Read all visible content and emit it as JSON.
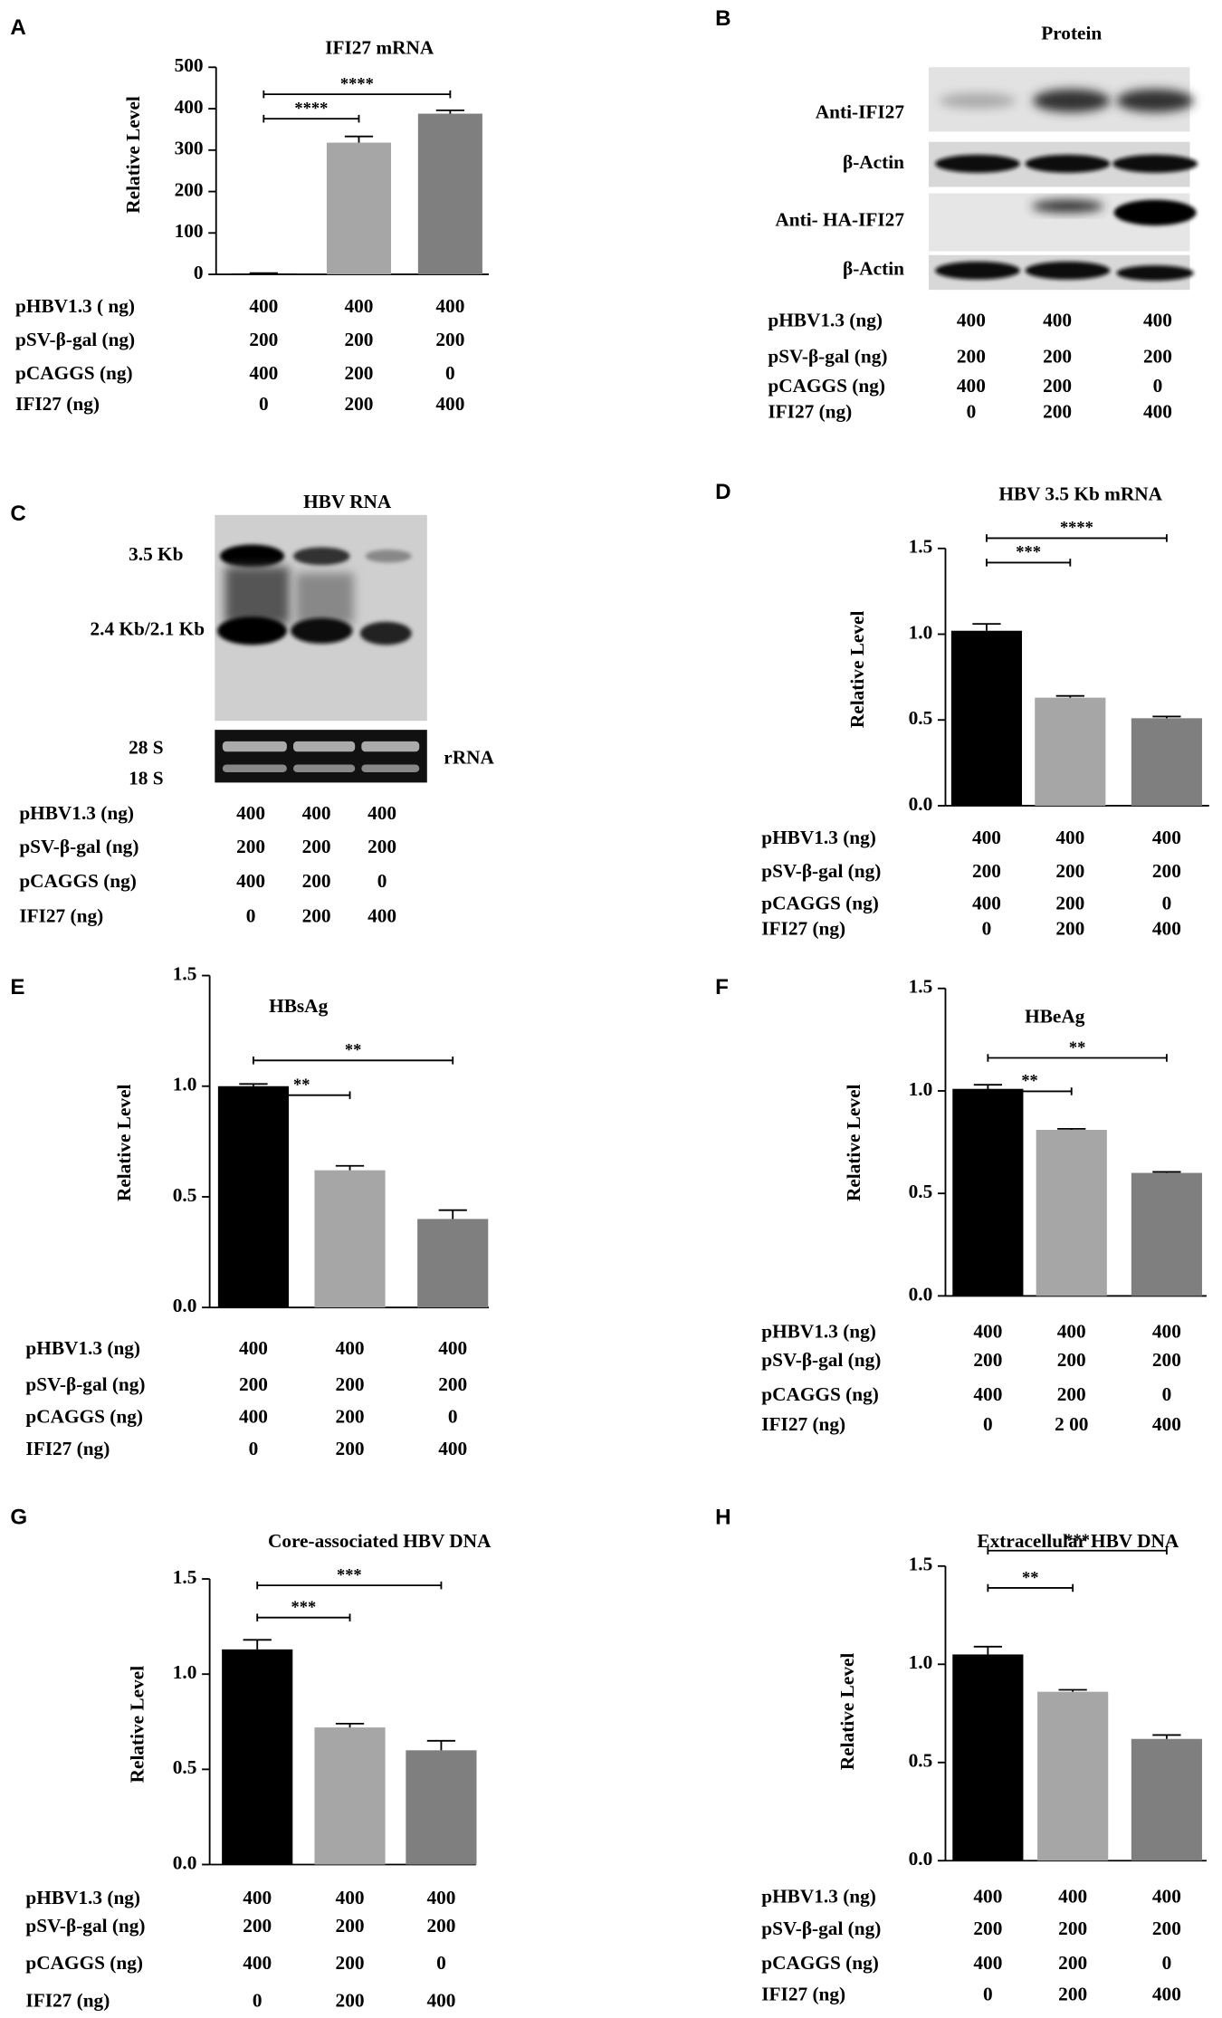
{
  "chart_data": [
    {
      "type": "bar",
      "panel": "A",
      "title": "IFI27 mRNA",
      "ylabel": "Relative Level",
      "values": [
        2,
        318,
        388
      ],
      "errors": [
        1,
        15,
        8
      ],
      "colors": [
        "#000000",
        "#a6a6a6",
        "#7f7f7f"
      ],
      "ylim": [
        0,
        500
      ],
      "yticks": [
        0,
        100,
        200,
        300,
        400,
        500
      ],
      "annotations": [
        "****",
        "****"
      ],
      "conditions": {
        "labels": [
          "pHBV1.3 ( ng)",
          "pSV-β-gal (ng)",
          "pCAGGS (ng)",
          "IFI27  (ng)"
        ],
        "values": [
          [
            400,
            400,
            400
          ],
          [
            200,
            200,
            200
          ],
          [
            400,
            200,
            0
          ],
          [
            0,
            200,
            400
          ]
        ]
      }
    },
    {
      "type": "bar",
      "panel": "D",
      "title": "HBV 3.5 Kb mRNA",
      "ylabel": "Relative Level",
      "values": [
        1.02,
        0.63,
        0.51
      ],
      "errors": [
        0.04,
        0.01,
        0.01
      ],
      "colors": [
        "#000000",
        "#a6a6a6",
        "#7f7f7f"
      ],
      "ylim": [
        0,
        1.5
      ],
      "yticks": [
        {
          "value": 0,
          "label": "0.0"
        },
        0.5,
        {
          "value": 1,
          "label": "1.0"
        },
        1.5
      ],
      "annotations": [
        "***",
        "****"
      ],
      "conditions": {
        "labels": [
          "pHBV1.3 (ng)",
          "pSV-β-gal (ng)",
          "pCAGGS (ng)",
          "IFI27  (ng)"
        ],
        "values": [
          [
            400,
            400,
            400
          ],
          [
            200,
            200,
            200
          ],
          [
            400,
            200,
            0
          ],
          [
            0,
            200,
            400
          ]
        ]
      }
    },
    {
      "type": "bar",
      "panel": "E",
      "title": "HBsAg",
      "ylabel": "Relative  Level",
      "values": [
        1.0,
        0.62,
        0.4
      ],
      "errors": [
        0.01,
        0.02,
        0.04
      ],
      "colors": [
        "#000000",
        "#a6a6a6",
        "#7f7f7f"
      ],
      "ylim": [
        0,
        1.5
      ],
      "yticks": [
        {
          "value": 0,
          "label": "0.0"
        },
        0.5,
        {
          "value": 1,
          "label": "1.0"
        },
        1.5
      ],
      "annotations": [
        "**",
        "**"
      ],
      "conditions": {
        "labels": [
          "pHBV1.3 (ng)",
          "pSV-β-gal (ng)",
          "pCAGGS (ng)",
          "IFI27   (ng)"
        ],
        "values": [
          [
            400,
            400,
            400
          ],
          [
            200,
            200,
            200
          ],
          [
            400,
            200,
            0
          ],
          [
            0,
            200,
            400
          ]
        ]
      }
    },
    {
      "type": "bar",
      "panel": "F",
      "title": "HBeAg",
      "ylabel": "Relative  Level",
      "values": [
        1.01,
        0.81,
        0.6
      ],
      "errors": [
        0.02,
        0.005,
        0.005
      ],
      "colors": [
        "#000000",
        "#a6a6a6",
        "#7f7f7f"
      ],
      "ylim": [
        0,
        1.5
      ],
      "yticks": [
        {
          "value": 0,
          "label": "0.0"
        },
        0.5,
        {
          "value": 1,
          "label": "1.0"
        },
        1.5
      ],
      "annotations": [
        "**",
        "**"
      ],
      "conditions": {
        "labels": [
          "pHBV1.3 (ng)",
          "pSV-β-gal (ng)",
          "pCAGGS (ng)",
          "IFI27 (ng)"
        ],
        "values": [
          [
            400,
            400,
            400
          ],
          [
            200,
            200,
            200
          ],
          [
            400,
            200,
            0
          ],
          [
            0,
            "2 00",
            400
          ]
        ]
      }
    },
    {
      "type": "bar",
      "panel": "G",
      "title": "Core-associated HBV DNA",
      "ylabel": "Relative Level",
      "values": [
        1.13,
        0.72,
        0.6
      ],
      "errors": [
        0.05,
        0.02,
        0.05
      ],
      "colors": [
        "#000000",
        "#a6a6a6",
        "#7f7f7f"
      ],
      "ylim": [
        0,
        1.5
      ],
      "yticks": [
        {
          "value": 0,
          "label": "0.0"
        },
        0.5,
        {
          "value": 1,
          "label": "1.0"
        },
        1.5
      ],
      "annotations": [
        "***",
        "***"
      ],
      "conditions": {
        "labels": [
          "pHBV1.3 (ng)",
          "pSV-β-gal (ng)",
          "pCAGGS (ng)",
          "IFI27   (ng)"
        ],
        "values": [
          [
            400,
            400,
            400
          ],
          [
            200,
            200,
            200
          ],
          [
            400,
            200,
            0
          ],
          [
            0,
            200,
            400
          ]
        ]
      }
    },
    {
      "type": "bar",
      "panel": "H",
      "title": "Extracellular HBV DNA",
      "ylabel": "Relative Level",
      "values": [
        1.05,
        0.86,
        0.62
      ],
      "errors": [
        0.04,
        0.01,
        0.02
      ],
      "colors": [
        "#000000",
        "#a6a6a6",
        "#7f7f7f"
      ],
      "ylim": [
        0,
        1.5
      ],
      "yticks": [
        {
          "value": 0,
          "label": "0.0"
        },
        0.5,
        {
          "value": 1,
          "label": "1.0"
        },
        1.5
      ],
      "annotations": [
        "**",
        "***"
      ],
      "conditions": {
        "labels": [
          "pHBV1.3 (ng)",
          "pSV-β-gal (ng)",
          "pCAGGS (ng)",
          "IFI27 (ng)"
        ],
        "values": [
          [
            400,
            400,
            400
          ],
          [
            200,
            200,
            200
          ],
          [
            400,
            200,
            0
          ],
          [
            0,
            200,
            400
          ]
        ]
      }
    }
  ],
  "blots": [
    {
      "panel": "B",
      "title": "Protein",
      "row_labels": [
        "Anti-IFI27",
        "β-Actin",
        "Anti- HA-IFI27",
        "β-Actin"
      ],
      "conditions": {
        "labels": [
          "pHBV1.3  (ng)",
          "pSV-β-gal  (ng)",
          "pCAGGS (ng)",
          "IFI27 (ng)"
        ],
        "values": [
          [
            400,
            400,
            400
          ],
          [
            200,
            200,
            200
          ],
          [
            400,
            200,
            0
          ],
          [
            0,
            200,
            400
          ]
        ]
      }
    },
    {
      "panel": "C",
      "title": "HBV RNA",
      "row_labels": [
        "3.5 Kb",
        "2.4 Kb/2.1 Kb",
        "28 S",
        "18 S"
      ],
      "right_label": "rRNA",
      "conditions": {
        "labels": [
          "pHBV1.3 (ng)",
          "pSV-β-gal (ng)",
          "pCAGGS (ng)",
          "IFI27  (ng)"
        ],
        "values": [
          [
            400,
            400,
            400
          ],
          [
            200,
            200,
            200
          ],
          [
            400,
            200,
            0
          ],
          [
            0,
            200,
            400
          ]
        ]
      }
    }
  ]
}
